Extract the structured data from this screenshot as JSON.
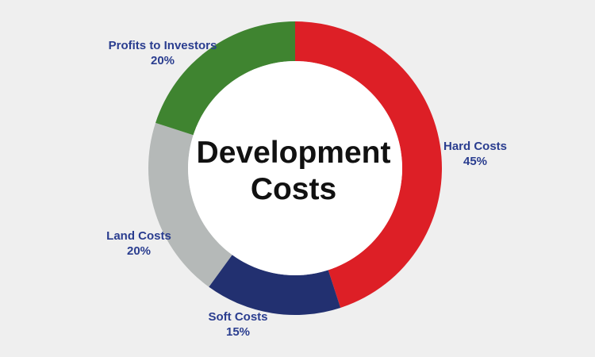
{
  "chart_data": {
    "type": "pie",
    "donut": true,
    "title": "Development Costs",
    "title_lines": [
      "Development",
      "Costs"
    ],
    "slices": [
      {
        "label": "Hard Costs",
        "value": 45,
        "value_label": "45%",
        "color": "#dd1f26"
      },
      {
        "label": "Soft Costs",
        "value": 15,
        "value_label": "15%",
        "color": "#223070"
      },
      {
        "label": "Land Costs",
        "value": 20,
        "value_label": "20%",
        "color": "#b5b9b8"
      },
      {
        "label": "Profits to Investors",
        "value": 20,
        "value_label": "20%",
        "color": "#3f8430"
      }
    ],
    "legend": "none"
  },
  "colors": {
    "background": "#efefef",
    "label_text": "#2a3d8f",
    "title_text": "#111111"
  }
}
